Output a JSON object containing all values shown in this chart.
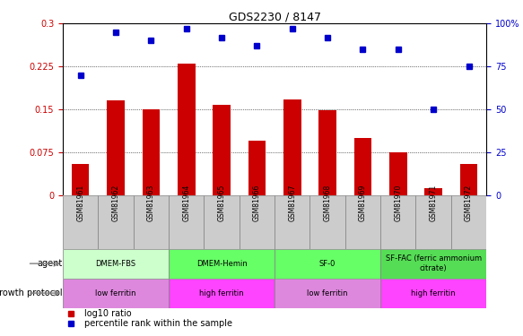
{
  "title": "GDS2230 / 8147",
  "samples": [
    "GSM81961",
    "GSM81962",
    "GSM81963",
    "GSM81964",
    "GSM81965",
    "GSM81966",
    "GSM81967",
    "GSM81968",
    "GSM81969",
    "GSM81970",
    "GSM81971",
    "GSM81972"
  ],
  "log10_ratio": [
    0.055,
    0.165,
    0.15,
    0.23,
    0.158,
    0.095,
    0.168,
    0.148,
    0.1,
    0.075,
    0.013,
    0.055
  ],
  "percentile_rank": [
    70,
    95,
    90,
    97,
    92,
    87,
    97,
    92,
    85,
    85,
    50,
    75
  ],
  "left_yticks": [
    0,
    0.075,
    0.15,
    0.225,
    0.3
  ],
  "right_yticks": [
    0,
    25,
    50,
    75,
    100
  ],
  "bar_color": "#cc0000",
  "dot_color": "#0000cc",
  "agent_groups": [
    {
      "label": "DMEM-FBS",
      "start": 0,
      "end": 3,
      "color": "#ccffcc"
    },
    {
      "label": "DMEM-Hemin",
      "start": 3,
      "end": 6,
      "color": "#66ff66"
    },
    {
      "label": "SF-0",
      "start": 6,
      "end": 9,
      "color": "#66ff66"
    },
    {
      "label": "SF-FAC (ferric ammonium\ncitrate)",
      "start": 9,
      "end": 12,
      "color": "#55dd55"
    }
  ],
  "growth_groups": [
    {
      "label": "low ferritin",
      "start": 0,
      "end": 3,
      "color": "#dd88dd"
    },
    {
      "label": "high ferritin",
      "start": 3,
      "end": 6,
      "color": "#ff44ff"
    },
    {
      "label": "low ferritin",
      "start": 6,
      "end": 9,
      "color": "#dd88dd"
    },
    {
      "label": "high ferritin",
      "start": 9,
      "end": 12,
      "color": "#ff44ff"
    }
  ],
  "sample_bg_color": "#cccccc",
  "legend_red_label": "log10 ratio",
  "legend_blue_label": "percentile rank within the sample"
}
